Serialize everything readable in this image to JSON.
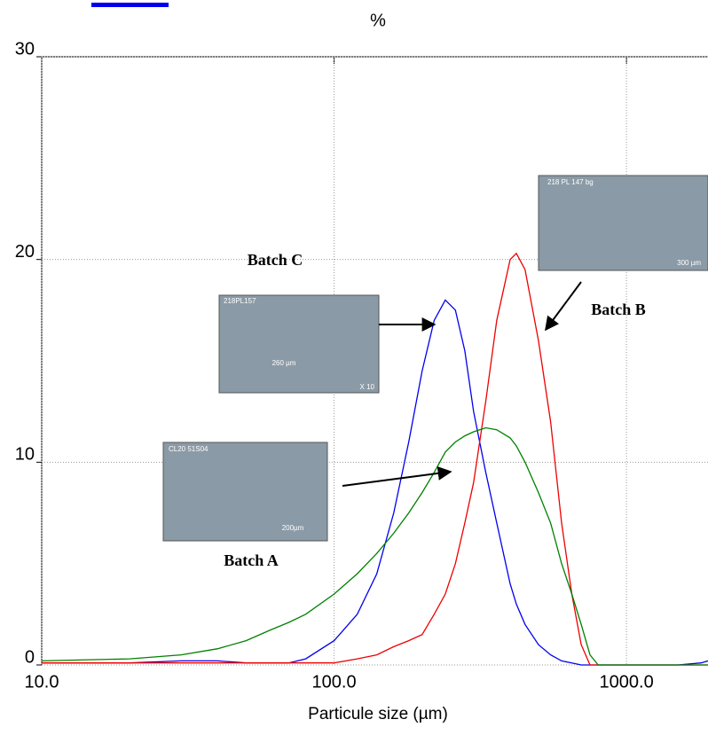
{
  "chart_data": {
    "type": "line",
    "title": "%",
    "x_label": "Particule size (µm)",
    "log_x": true,
    "grid": true,
    "xlim": [
      10,
      1900
    ],
    "ylim": [
      0,
      30
    ],
    "xticks": [
      {
        "value": 10,
        "label": "10.0"
      },
      {
        "value": 100,
        "label": "100.0"
      },
      {
        "value": 1000,
        "label": "1000.0"
      }
    ],
    "yticks": [
      0,
      10,
      20,
      30
    ],
    "x": [
      10,
      20,
      30,
      40,
      50,
      60,
      70,
      80,
      100,
      120,
      140,
      160,
      180,
      200,
      220,
      240,
      260,
      280,
      300,
      330,
      360,
      400,
      420,
      450,
      500,
      550,
      600,
      650,
      700,
      750,
      800,
      1000,
      1500,
      1800,
      1900
    ],
    "series": [
      {
        "name": "Batch C",
        "color": "#0000ee",
        "values": [
          0.1,
          0.1,
          0.2,
          0.2,
          0.1,
          0.1,
          0.1,
          0.3,
          1.2,
          2.5,
          4.5,
          7.5,
          11,
          14.5,
          17,
          18,
          17.5,
          15.5,
          12.5,
          9.5,
          7,
          4,
          3,
          2,
          1,
          0.5,
          0.2,
          0.1,
          0,
          0,
          0,
          0,
          0,
          0.1,
          0.2
        ]
      },
      {
        "name": "Batch B",
        "color": "#ee0000",
        "values": [
          0.1,
          0.1,
          0.1,
          0.1,
          0.1,
          0.1,
          0.1,
          0.1,
          0.1,
          0.3,
          0.5,
          0.9,
          1.2,
          1.5,
          2.5,
          3.5,
          5,
          7,
          9,
          13,
          17,
          20,
          20.3,
          19.5,
          16,
          12,
          7,
          3.5,
          1,
          0,
          0,
          0,
          0,
          0,
          0
        ]
      },
      {
        "name": "Batch A",
        "color": "#008000",
        "values": [
          0.2,
          0.3,
          0.5,
          0.8,
          1.2,
          1.7,
          2.1,
          2.5,
          3.5,
          4.5,
          5.5,
          6.5,
          7.5,
          8.5,
          9.5,
          10.5,
          11,
          11.3,
          11.5,
          11.7,
          11.6,
          11.2,
          10.8,
          10,
          8.5,
          7,
          5,
          3.5,
          2,
          0.5,
          0,
          0,
          0,
          0,
          0
        ]
      }
    ],
    "images": [
      {
        "series": 0,
        "captions": [
          "218PL157",
          "260 µm",
          "X 10"
        ]
      },
      {
        "series": 1,
        "captions": [
          "218 PL 147 bg",
          "300 µm"
        ]
      },
      {
        "series": 2,
        "captions": [
          "CL20 51S04",
          "200µm"
        ]
      }
    ]
  }
}
